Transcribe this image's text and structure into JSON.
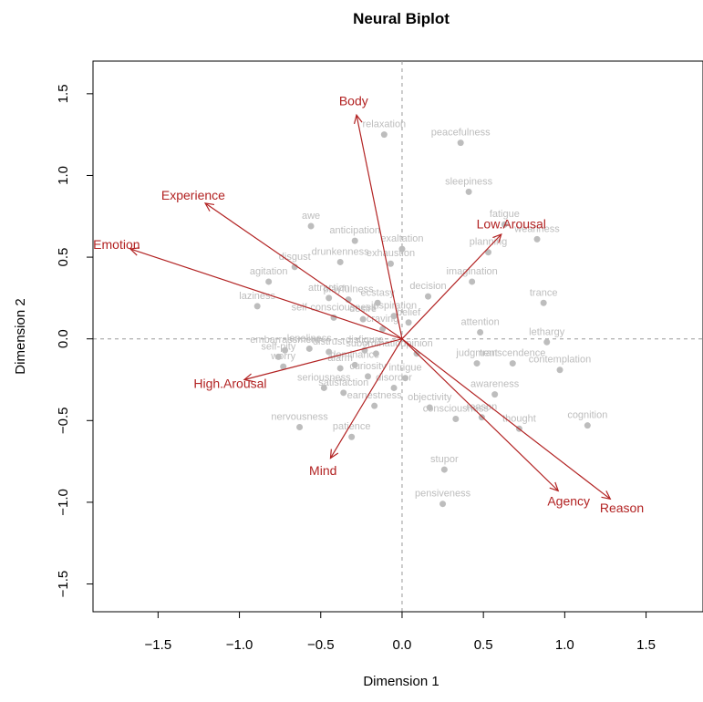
{
  "chart_data": {
    "type": "scatter",
    "title": "Neural Biplot",
    "xlabel": "Dimension 1",
    "ylabel": "Dimension 2",
    "xlim": [
      -1.9,
      1.85
    ],
    "ylim": [
      -1.67,
      1.7
    ],
    "x_ticks": [
      -1.5,
      -1.0,
      -0.5,
      0.0,
      0.5,
      1.0,
      1.5
    ],
    "x_tick_labels": [
      "−1.5",
      "−1.0",
      "−0.5",
      "0.0",
      "0.5",
      "1.0",
      "1.5"
    ],
    "y_ticks": [
      -1.5,
      -1.0,
      -0.5,
      0.0,
      0.5,
      1.0,
      1.5
    ],
    "y_tick_labels": [
      "−1.5",
      "−1.0",
      "−0.5",
      "0.0",
      "0.5",
      "1.0",
      "1.5"
    ],
    "grid": false,
    "reference_lines": {
      "x": 0,
      "y": 0
    },
    "point_color": "#bdbdbd",
    "arrow_color": "#b22222",
    "points": [
      {
        "label": "relaxation",
        "x": -0.11,
        "y": 1.25
      },
      {
        "label": "peacefulness",
        "x": 0.36,
        "y": 1.2
      },
      {
        "label": "sleepiness",
        "x": 0.41,
        "y": 0.9
      },
      {
        "label": "fatigue",
        "x": 0.63,
        "y": 0.7
      },
      {
        "label": "weariness",
        "x": 0.83,
        "y": 0.61
      },
      {
        "label": "awe",
        "x": -0.56,
        "y": 0.69
      },
      {
        "label": "anticipation",
        "x": -0.29,
        "y": 0.6
      },
      {
        "label": "exaltation",
        "x": 0.0,
        "y": 0.55
      },
      {
        "label": "drunkenness",
        "x": -0.38,
        "y": 0.47
      },
      {
        "label": "exhaustion",
        "x": -0.07,
        "y": 0.46
      },
      {
        "label": "disgust",
        "x": -0.66,
        "y": 0.44
      },
      {
        "label": "planning",
        "x": 0.53,
        "y": 0.53
      },
      {
        "label": "agitation",
        "x": -0.82,
        "y": 0.35
      },
      {
        "label": "imagination",
        "x": 0.43,
        "y": 0.35
      },
      {
        "label": "decision",
        "x": 0.16,
        "y": 0.26
      },
      {
        "label": "laziness",
        "x": -0.89,
        "y": 0.2
      },
      {
        "label": "attraction",
        "x": -0.45,
        "y": 0.25
      },
      {
        "label": "playfulness",
        "x": -0.33,
        "y": 0.24
      },
      {
        "label": "ecstasy",
        "x": -0.15,
        "y": 0.22
      },
      {
        "label": "trance",
        "x": 0.87,
        "y": 0.22
      },
      {
        "label": "inspiration",
        "x": -0.05,
        "y": 0.14
      },
      {
        "label": "self-consciousness",
        "x": -0.42,
        "y": 0.13
      },
      {
        "label": "desire",
        "x": -0.24,
        "y": 0.12
      },
      {
        "label": "belief",
        "x": 0.04,
        "y": 0.1
      },
      {
        "label": "craving",
        "x": -0.12,
        "y": 0.06
      },
      {
        "label": "attention",
        "x": 0.48,
        "y": 0.04
      },
      {
        "label": "lethargy",
        "x": 0.89,
        "y": -0.02
      },
      {
        "label": "embarrassment",
        "x": -0.72,
        "y": -0.07
      },
      {
        "label": "loneliness",
        "x": -0.57,
        "y": -0.06
      },
      {
        "label": "disfigure",
        "x": -0.23,
        "y": -0.07
      },
      {
        "label": "self-pity",
        "x": -0.76,
        "y": -0.11
      },
      {
        "label": "distrust",
        "x": -0.45,
        "y": -0.08
      },
      {
        "label": "subordination",
        "x": -0.16,
        "y": -0.09
      },
      {
        "label": "opinion",
        "x": 0.09,
        "y": -0.09
      },
      {
        "label": "judgment",
        "x": 0.46,
        "y": -0.15
      },
      {
        "label": "transcendence",
        "x": 0.68,
        "y": -0.15
      },
      {
        "label": "contemplation",
        "x": 0.97,
        "y": -0.19
      },
      {
        "label": "dominance",
        "x": -0.29,
        "y": -0.16
      },
      {
        "label": "worry",
        "x": -0.73,
        "y": -0.17
      },
      {
        "label": "alarm",
        "x": -0.38,
        "y": -0.18
      },
      {
        "label": "seriousness",
        "x": -0.48,
        "y": -0.3
      },
      {
        "label": "curiosity",
        "x": -0.21,
        "y": -0.23
      },
      {
        "label": "satisfaction",
        "x": -0.36,
        "y": -0.33
      },
      {
        "label": "awareness",
        "x": 0.57,
        "y": -0.34
      },
      {
        "label": "intrigue",
        "x": 0.02,
        "y": -0.24
      },
      {
        "label": "earnestness",
        "x": -0.17,
        "y": -0.41
      },
      {
        "label": "disorder",
        "x": -0.05,
        "y": -0.3
      },
      {
        "label": "reason",
        "x": 0.49,
        "y": -0.48
      },
      {
        "label": "objectivity",
        "x": 0.17,
        "y": -0.42
      },
      {
        "label": "consciousness",
        "x": 0.33,
        "y": -0.49
      },
      {
        "label": "thought",
        "x": 0.72,
        "y": -0.55
      },
      {
        "label": "nervousness",
        "x": -0.63,
        "y": -0.54
      },
      {
        "label": "patience",
        "x": -0.31,
        "y": -0.6
      },
      {
        "label": "cognition",
        "x": 1.14,
        "y": -0.53
      },
      {
        "label": "stupor",
        "x": 0.26,
        "y": -0.8
      },
      {
        "label": "pensiveness",
        "x": 0.25,
        "y": -1.01
      }
    ],
    "arrows": [
      {
        "label": "Body",
        "x": -0.28,
        "y": 1.37
      },
      {
        "label": "Experience",
        "x": -1.21,
        "y": 0.83
      },
      {
        "label": "Emotion",
        "x": -1.67,
        "y": 0.55
      },
      {
        "label": "Low.Arousal",
        "x": 0.61,
        "y": 0.64
      },
      {
        "label": "High.Arousal",
        "x": -0.97,
        "y": -0.25
      },
      {
        "label": "Mind",
        "x": -0.44,
        "y": -0.73
      },
      {
        "label": "Agency",
        "x": 0.96,
        "y": -0.93
      },
      {
        "label": "Reason",
        "x": 1.28,
        "y": -0.98
      }
    ]
  }
}
